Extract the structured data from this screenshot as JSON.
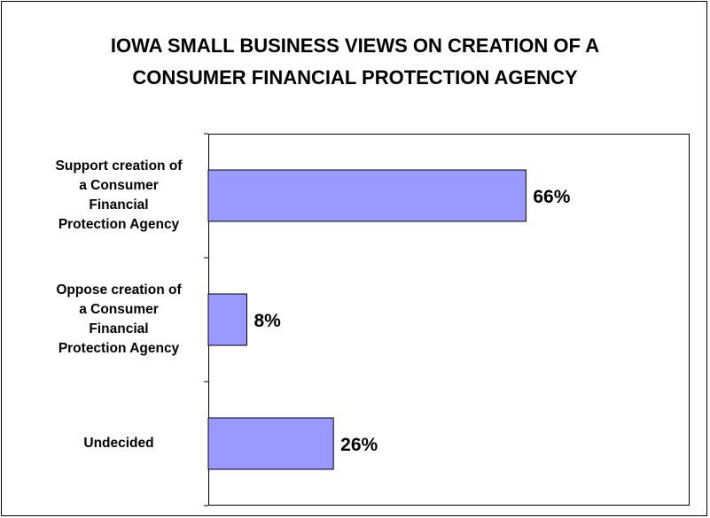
{
  "chart_data": {
    "type": "bar",
    "orientation": "horizontal",
    "title_lines": [
      "IOWA SMALL BUSINESS VIEWS ON CREATION OF A",
      "CONSUMER FINANCIAL PROTECTION AGENCY"
    ],
    "categories": [
      [
        "Support creation of",
        "a Consumer",
        "Financial",
        "Protection Agency"
      ],
      [
        "Oppose creation of",
        "a Consumer",
        "Financial",
        "Protection Agency"
      ],
      [
        "Undecided"
      ]
    ],
    "values": [
      66,
      8,
      26
    ],
    "data_labels": [
      "66%",
      "8%",
      "26%"
    ],
    "xlim": [
      0,
      100
    ],
    "grid": false,
    "colors": {
      "bar_fill": "#9999ff",
      "bar_stroke": "#000000"
    }
  }
}
